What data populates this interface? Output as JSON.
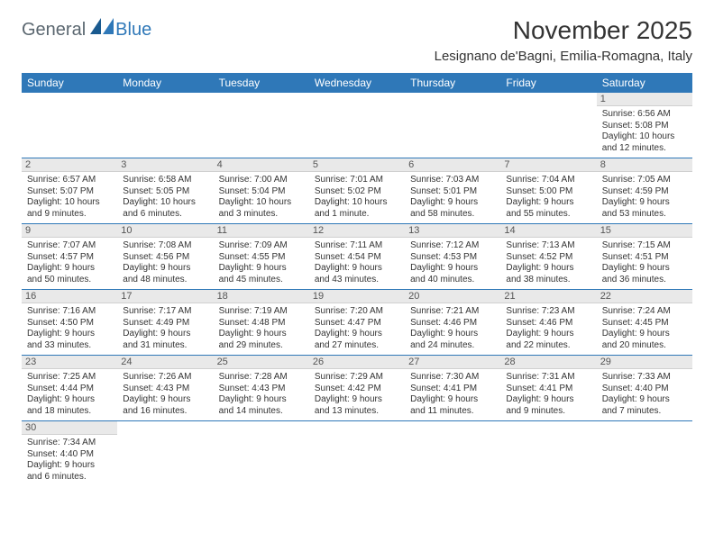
{
  "brand": {
    "text_general": "General",
    "text_blue": "Blue",
    "mark_colors": {
      "dark": "#1a5a8f",
      "light": "#2f78b8"
    }
  },
  "title": {
    "month": "November 2025",
    "location": "Lesignano de'Bagni, Emilia-Romagna, Italy"
  },
  "style": {
    "header_bg": "#2f78b8",
    "header_fg": "#ffffff",
    "cell_border": "#2f78b8",
    "daynum_bg": "#e9e9e9",
    "font_size_title": 28,
    "font_size_location": 15,
    "font_size_weekday": 12,
    "font_size_daynum": 11,
    "font_size_info": 10
  },
  "weekdays": [
    "Sunday",
    "Monday",
    "Tuesday",
    "Wednesday",
    "Thursday",
    "Friday",
    "Saturday"
  ],
  "weeks": [
    [
      null,
      null,
      null,
      null,
      null,
      null,
      {
        "n": "1",
        "sr": "Sunrise: 6:56 AM",
        "ss": "Sunset: 5:08 PM",
        "dl1": "Daylight: 10 hours",
        "dl2": "and 12 minutes."
      }
    ],
    [
      {
        "n": "2",
        "sr": "Sunrise: 6:57 AM",
        "ss": "Sunset: 5:07 PM",
        "dl1": "Daylight: 10 hours",
        "dl2": "and 9 minutes."
      },
      {
        "n": "3",
        "sr": "Sunrise: 6:58 AM",
        "ss": "Sunset: 5:05 PM",
        "dl1": "Daylight: 10 hours",
        "dl2": "and 6 minutes."
      },
      {
        "n": "4",
        "sr": "Sunrise: 7:00 AM",
        "ss": "Sunset: 5:04 PM",
        "dl1": "Daylight: 10 hours",
        "dl2": "and 3 minutes."
      },
      {
        "n": "5",
        "sr": "Sunrise: 7:01 AM",
        "ss": "Sunset: 5:02 PM",
        "dl1": "Daylight: 10 hours",
        "dl2": "and 1 minute."
      },
      {
        "n": "6",
        "sr": "Sunrise: 7:03 AM",
        "ss": "Sunset: 5:01 PM",
        "dl1": "Daylight: 9 hours",
        "dl2": "and 58 minutes."
      },
      {
        "n": "7",
        "sr": "Sunrise: 7:04 AM",
        "ss": "Sunset: 5:00 PM",
        "dl1": "Daylight: 9 hours",
        "dl2": "and 55 minutes."
      },
      {
        "n": "8",
        "sr": "Sunrise: 7:05 AM",
        "ss": "Sunset: 4:59 PM",
        "dl1": "Daylight: 9 hours",
        "dl2": "and 53 minutes."
      }
    ],
    [
      {
        "n": "9",
        "sr": "Sunrise: 7:07 AM",
        "ss": "Sunset: 4:57 PM",
        "dl1": "Daylight: 9 hours",
        "dl2": "and 50 minutes."
      },
      {
        "n": "10",
        "sr": "Sunrise: 7:08 AM",
        "ss": "Sunset: 4:56 PM",
        "dl1": "Daylight: 9 hours",
        "dl2": "and 48 minutes."
      },
      {
        "n": "11",
        "sr": "Sunrise: 7:09 AM",
        "ss": "Sunset: 4:55 PM",
        "dl1": "Daylight: 9 hours",
        "dl2": "and 45 minutes."
      },
      {
        "n": "12",
        "sr": "Sunrise: 7:11 AM",
        "ss": "Sunset: 4:54 PM",
        "dl1": "Daylight: 9 hours",
        "dl2": "and 43 minutes."
      },
      {
        "n": "13",
        "sr": "Sunrise: 7:12 AM",
        "ss": "Sunset: 4:53 PM",
        "dl1": "Daylight: 9 hours",
        "dl2": "and 40 minutes."
      },
      {
        "n": "14",
        "sr": "Sunrise: 7:13 AM",
        "ss": "Sunset: 4:52 PM",
        "dl1": "Daylight: 9 hours",
        "dl2": "and 38 minutes."
      },
      {
        "n": "15",
        "sr": "Sunrise: 7:15 AM",
        "ss": "Sunset: 4:51 PM",
        "dl1": "Daylight: 9 hours",
        "dl2": "and 36 minutes."
      }
    ],
    [
      {
        "n": "16",
        "sr": "Sunrise: 7:16 AM",
        "ss": "Sunset: 4:50 PM",
        "dl1": "Daylight: 9 hours",
        "dl2": "and 33 minutes."
      },
      {
        "n": "17",
        "sr": "Sunrise: 7:17 AM",
        "ss": "Sunset: 4:49 PM",
        "dl1": "Daylight: 9 hours",
        "dl2": "and 31 minutes."
      },
      {
        "n": "18",
        "sr": "Sunrise: 7:19 AM",
        "ss": "Sunset: 4:48 PM",
        "dl1": "Daylight: 9 hours",
        "dl2": "and 29 minutes."
      },
      {
        "n": "19",
        "sr": "Sunrise: 7:20 AM",
        "ss": "Sunset: 4:47 PM",
        "dl1": "Daylight: 9 hours",
        "dl2": "and 27 minutes."
      },
      {
        "n": "20",
        "sr": "Sunrise: 7:21 AM",
        "ss": "Sunset: 4:46 PM",
        "dl1": "Daylight: 9 hours",
        "dl2": "and 24 minutes."
      },
      {
        "n": "21",
        "sr": "Sunrise: 7:23 AM",
        "ss": "Sunset: 4:46 PM",
        "dl1": "Daylight: 9 hours",
        "dl2": "and 22 minutes."
      },
      {
        "n": "22",
        "sr": "Sunrise: 7:24 AM",
        "ss": "Sunset: 4:45 PM",
        "dl1": "Daylight: 9 hours",
        "dl2": "and 20 minutes."
      }
    ],
    [
      {
        "n": "23",
        "sr": "Sunrise: 7:25 AM",
        "ss": "Sunset: 4:44 PM",
        "dl1": "Daylight: 9 hours",
        "dl2": "and 18 minutes."
      },
      {
        "n": "24",
        "sr": "Sunrise: 7:26 AM",
        "ss": "Sunset: 4:43 PM",
        "dl1": "Daylight: 9 hours",
        "dl2": "and 16 minutes."
      },
      {
        "n": "25",
        "sr": "Sunrise: 7:28 AM",
        "ss": "Sunset: 4:43 PM",
        "dl1": "Daylight: 9 hours",
        "dl2": "and 14 minutes."
      },
      {
        "n": "26",
        "sr": "Sunrise: 7:29 AM",
        "ss": "Sunset: 4:42 PM",
        "dl1": "Daylight: 9 hours",
        "dl2": "and 13 minutes."
      },
      {
        "n": "27",
        "sr": "Sunrise: 7:30 AM",
        "ss": "Sunset: 4:41 PM",
        "dl1": "Daylight: 9 hours",
        "dl2": "and 11 minutes."
      },
      {
        "n": "28",
        "sr": "Sunrise: 7:31 AM",
        "ss": "Sunset: 4:41 PM",
        "dl1": "Daylight: 9 hours",
        "dl2": "and 9 minutes."
      },
      {
        "n": "29",
        "sr": "Sunrise: 7:33 AM",
        "ss": "Sunset: 4:40 PM",
        "dl1": "Daylight: 9 hours",
        "dl2": "and 7 minutes."
      }
    ],
    [
      {
        "n": "30",
        "sr": "Sunrise: 7:34 AM",
        "ss": "Sunset: 4:40 PM",
        "dl1": "Daylight: 9 hours",
        "dl2": "and 6 minutes."
      },
      null,
      null,
      null,
      null,
      null,
      null
    ]
  ]
}
